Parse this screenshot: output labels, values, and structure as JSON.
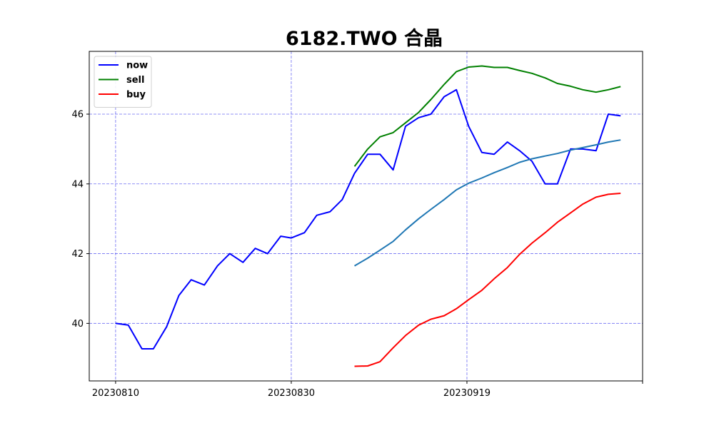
{
  "chart_data": {
    "type": "line",
    "title": "6182.TWO 合晶",
    "xlabel": "",
    "ylabel": "",
    "x_ticks": [
      "20230810",
      "20230830",
      "20230919",
      ""
    ],
    "x_tick_days": [
      0,
      20,
      40,
      60
    ],
    "y_ticks": [
      40,
      42,
      44,
      46
    ],
    "xlim": [
      -3,
      60
    ],
    "ylim": [
      38.35,
      47.8
    ],
    "grid": true,
    "grid_color": "#4a4af0",
    "legend_position": "top-left",
    "series": [
      {
        "name": "now",
        "color": "#0000ff",
        "x": [
          0,
          1.45,
          3,
          4.3,
          5.8,
          7.2,
          8.6,
          10.1,
          11.6,
          13,
          14.5,
          15.9,
          17.3,
          18.8,
          20,
          21.5,
          22.9,
          24.4,
          25.8,
          27.2,
          28.7,
          30.1,
          31.6,
          33,
          34.5,
          35.9,
          37.4,
          38.8,
          40.2,
          41.7,
          43.1,
          44.6,
          46,
          47.4,
          48.9,
          50.3,
          51.8,
          53.2,
          54.7,
          56.1,
          57.5
        ],
        "y": [
          40.0,
          39.95,
          39.27,
          39.27,
          39.9,
          40.8,
          41.25,
          41.1,
          41.65,
          42.0,
          41.75,
          42.15,
          42.0,
          42.5,
          42.45,
          42.6,
          43.1,
          43.2,
          43.55,
          44.3,
          44.85,
          44.85,
          44.4,
          45.65,
          45.9,
          46.0,
          46.5,
          46.7,
          45.65,
          44.9,
          44.85,
          45.2,
          44.95,
          44.65,
          44.0,
          44.0,
          45.0,
          45.0,
          44.95,
          46.0,
          45.95
        ]
      },
      {
        "name": "sell",
        "color": "#008000",
        "x": [
          27.2,
          28.7,
          30.1,
          31.6,
          33,
          34.5,
          35.9,
          37.4,
          38.8,
          40.2,
          41.7,
          43.1,
          44.6,
          46,
          47.4,
          48.9,
          50.3,
          51.8,
          53.2,
          54.7,
          56.1,
          57.5
        ],
        "y": [
          44.5,
          45.0,
          45.35,
          45.47,
          45.75,
          46.05,
          46.42,
          46.85,
          47.22,
          47.35,
          47.38,
          47.34,
          47.34,
          47.25,
          47.17,
          47.04,
          46.88,
          46.8,
          46.7,
          46.63,
          46.7,
          46.79
        ]
      },
      {
        "name": "",
        "color": "#1f77b4",
        "x": [
          27.2,
          28.7,
          30.1,
          31.6,
          33,
          34.5,
          35.9,
          37.4,
          38.8,
          40.2,
          41.7,
          43.1,
          44.6,
          46,
          47.4,
          48.9,
          50.3,
          51.8,
          53.2,
          54.7,
          56.1,
          57.5
        ],
        "y": [
          41.65,
          41.87,
          42.1,
          42.35,
          42.68,
          43.0,
          43.27,
          43.55,
          43.83,
          44.02,
          44.17,
          44.32,
          44.47,
          44.62,
          44.72,
          44.8,
          44.87,
          44.97,
          45.04,
          45.12,
          45.2,
          45.26
        ]
      },
      {
        "name": "buy",
        "color": "#ff0000",
        "x": [
          27.2,
          28.7,
          30.1,
          31.6,
          33,
          34.5,
          35.9,
          37.4,
          38.8,
          40.2,
          41.7,
          43.1,
          44.6,
          46,
          47.4,
          48.9,
          50.3,
          51.8,
          53.2,
          54.7,
          56.1,
          57.5
        ],
        "y": [
          38.77,
          38.78,
          38.9,
          39.3,
          39.65,
          39.95,
          40.12,
          40.22,
          40.42,
          40.68,
          40.95,
          41.28,
          41.6,
          41.98,
          42.3,
          42.6,
          42.9,
          43.17,
          43.42,
          43.62,
          43.7,
          43.73
        ]
      }
    ]
  }
}
